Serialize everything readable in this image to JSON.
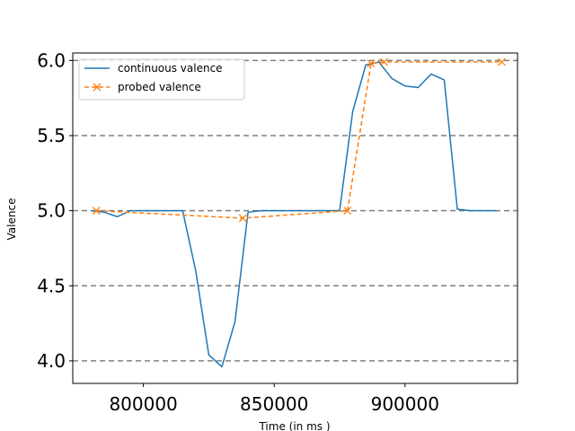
{
  "chart_data": {
    "type": "line",
    "xlabel": "Time (in ms )",
    "ylabel": "Valence",
    "xlim": [
      773000,
      943000
    ],
    "ylim": [
      3.85,
      6.05
    ],
    "xticks": [
      800000,
      850000,
      900000
    ],
    "yticks": [
      4.0,
      4.5,
      5.0,
      5.5,
      6.0
    ],
    "ytick_labels": [
      "4.0",
      "4.5",
      "5.0",
      "5.5",
      "6.0"
    ],
    "xtick_labels": [
      "800000",
      "850000",
      "900000"
    ],
    "hlines": [
      4.0,
      4.5,
      5.0,
      5.5,
      6.0
    ],
    "grid": false,
    "legend_position": "top-left",
    "series": [
      {
        "name": "continuous valence",
        "color": "#1f77b4",
        "style": "solid",
        "marker": "none",
        "x": [
          780000,
          785000,
          790000,
          795000,
          800000,
          805000,
          810000,
          815000,
          820000,
          825000,
          830000,
          835000,
          840000,
          845000,
          850000,
          855000,
          860000,
          865000,
          870000,
          875000,
          880000,
          885000,
          890000,
          895000,
          900000,
          905000,
          910000,
          915000,
          920000,
          925000,
          930000,
          935000
        ],
        "values": [
          5.0,
          4.99,
          4.96,
          5.0,
          5.0,
          5.0,
          5.0,
          5.0,
          4.6,
          4.04,
          3.96,
          4.26,
          4.99,
          5.0,
          5.0,
          5.0,
          5.0,
          5.0,
          5.0,
          5.0,
          5.66,
          5.97,
          5.99,
          5.88,
          5.83,
          5.82,
          5.91,
          5.87,
          5.01,
          5.0,
          5.0,
          5.0
        ]
      },
      {
        "name": "probed valence",
        "color": "#ff7f0e",
        "style": "dashed",
        "marker": "x",
        "x": [
          782000,
          838000,
          878000,
          887000,
          892000,
          937000
        ],
        "values": [
          5.0,
          4.95,
          5.0,
          5.98,
          5.99,
          5.99
        ]
      }
    ]
  }
}
